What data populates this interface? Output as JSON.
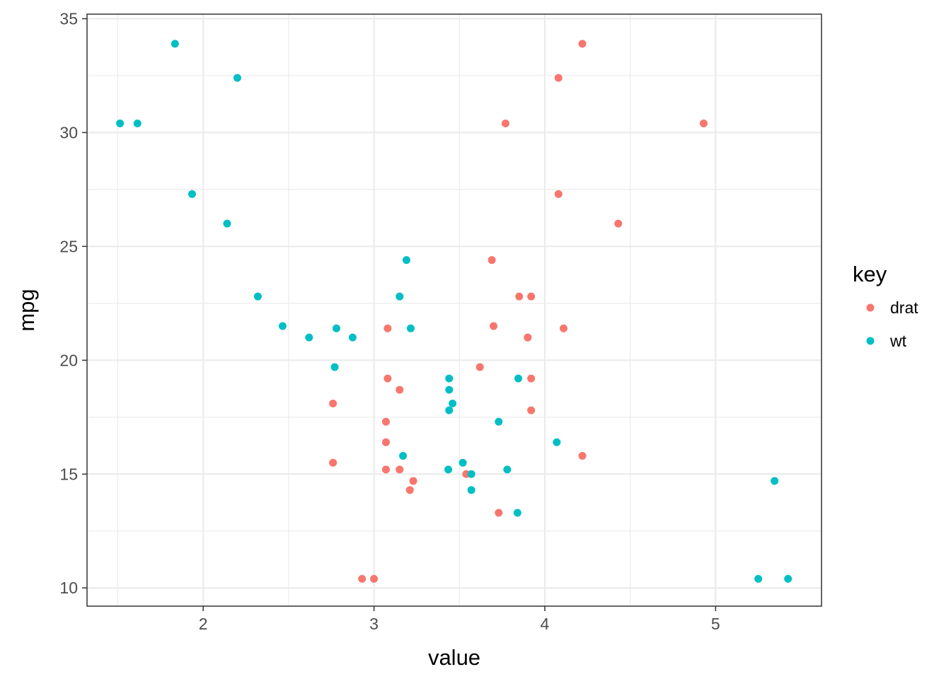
{
  "chart_data": {
    "type": "scatter",
    "title": "",
    "xlabel": "value",
    "ylabel": "mpg",
    "xlim": [
      1.32,
      5.62
    ],
    "ylim": [
      9.2,
      35.2
    ],
    "x_ticks": [
      2,
      3,
      4,
      5
    ],
    "x_minor_ticks": [
      1.5,
      2.5,
      3.5,
      4.5
    ],
    "y_ticks": [
      10,
      15,
      20,
      25,
      30,
      35
    ],
    "y_minor_ticks": [
      12.5,
      17.5,
      22.5,
      27.5,
      32.5
    ],
    "grid": true,
    "legend": {
      "title": "key",
      "position": "right"
    },
    "series": [
      {
        "name": "drat",
        "color": "#f8766d",
        "points": [
          [
            3.9,
            21.0
          ],
          [
            3.9,
            21.0
          ],
          [
            3.85,
            22.8
          ],
          [
            3.08,
            21.4
          ],
          [
            3.15,
            18.7
          ],
          [
            2.76,
            18.1
          ],
          [
            3.21,
            14.3
          ],
          [
            3.69,
            24.4
          ],
          [
            3.92,
            22.8
          ],
          [
            3.92,
            19.2
          ],
          [
            3.92,
            17.8
          ],
          [
            3.07,
            16.4
          ],
          [
            3.07,
            17.3
          ],
          [
            3.07,
            15.2
          ],
          [
            2.93,
            10.4
          ],
          [
            3.0,
            10.4
          ],
          [
            3.23,
            14.7
          ],
          [
            4.08,
            32.4
          ],
          [
            4.93,
            30.4
          ],
          [
            4.22,
            33.9
          ],
          [
            3.7,
            21.5
          ],
          [
            2.76,
            15.5
          ],
          [
            3.15,
            15.2
          ],
          [
            3.73,
            13.3
          ],
          [
            3.08,
            19.2
          ],
          [
            4.08,
            27.3
          ],
          [
            4.43,
            26.0
          ],
          [
            3.77,
            30.4
          ],
          [
            4.22,
            15.8
          ],
          [
            3.62,
            19.7
          ],
          [
            3.54,
            15.0
          ],
          [
            4.11,
            21.4
          ]
        ]
      },
      {
        "name": "wt",
        "color": "#00bfc4",
        "points": [
          [
            2.62,
            21.0
          ],
          [
            2.875,
            21.0
          ],
          [
            2.32,
            22.8
          ],
          [
            3.215,
            21.4
          ],
          [
            3.44,
            18.7
          ],
          [
            3.46,
            18.1
          ],
          [
            3.57,
            14.3
          ],
          [
            3.19,
            24.4
          ],
          [
            3.15,
            22.8
          ],
          [
            3.44,
            19.2
          ],
          [
            3.44,
            17.8
          ],
          [
            4.07,
            16.4
          ],
          [
            3.73,
            17.3
          ],
          [
            3.78,
            15.2
          ],
          [
            5.25,
            10.4
          ],
          [
            5.424,
            10.4
          ],
          [
            5.345,
            14.7
          ],
          [
            2.2,
            32.4
          ],
          [
            1.615,
            30.4
          ],
          [
            1.835,
            33.9
          ],
          [
            2.465,
            21.5
          ],
          [
            3.52,
            15.5
          ],
          [
            3.435,
            15.2
          ],
          [
            3.84,
            13.3
          ],
          [
            3.845,
            19.2
          ],
          [
            1.935,
            27.3
          ],
          [
            2.14,
            26.0
          ],
          [
            1.513,
            30.4
          ],
          [
            3.17,
            15.8
          ],
          [
            2.77,
            19.7
          ],
          [
            3.57,
            15.0
          ],
          [
            2.78,
            21.4
          ]
        ]
      }
    ]
  }
}
